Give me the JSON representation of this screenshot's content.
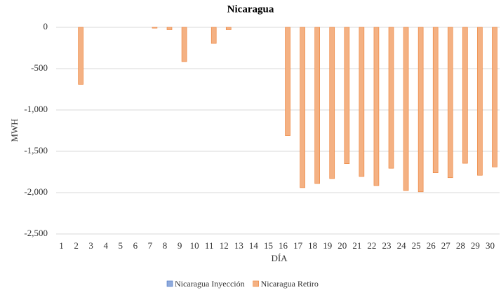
{
  "chart_data": {
    "type": "bar",
    "title": "Nicaragua",
    "x_label": "DÍA",
    "y_label": "MWH",
    "categories": [
      "1",
      "2",
      "3",
      "4",
      "5",
      "6",
      "7",
      "8",
      "9",
      "10",
      "11",
      "12",
      "13",
      "14",
      "15",
      "16",
      "17",
      "18",
      "19",
      "20",
      "21",
      "22",
      "23",
      "24",
      "25",
      "26",
      "27",
      "28",
      "29",
      "30"
    ],
    "series": [
      {
        "name": "Nicaragua Inyección",
        "color": "#8faadc",
        "values": [
          0,
          0,
          0,
          0,
          0,
          0,
          0,
          0,
          0,
          0,
          0,
          0,
          0,
          0,
          0,
          0,
          0,
          0,
          0,
          0,
          0,
          0,
          0,
          0,
          0,
          0,
          0,
          0,
          0,
          0
        ]
      },
      {
        "name": "Nicaragua Retiro",
        "color": "#f4b183",
        "values": [
          0,
          -690,
          0,
          0,
          0,
          0,
          -10,
          -30,
          -415,
          0,
          -195,
          -30,
          0,
          0,
          0,
          -1310,
          -1940,
          -1890,
          -1830,
          -1650,
          -1805,
          -1915,
          -1705,
          -1975,
          -1990,
          -1760,
          -1820,
          -1645,
          -1790,
          -1690
        ]
      }
    ],
    "ylim": [
      -2500,
      0
    ],
    "yticks": [
      {
        "value": -2500,
        "label": "-2,500"
      },
      {
        "value": -2000,
        "label": "-2,000"
      },
      {
        "value": -1500,
        "label": "-1,500"
      },
      {
        "value": -1000,
        "label": "-1,000"
      },
      -500,
      0
    ],
    "grid": true,
    "legend": "bottom"
  }
}
